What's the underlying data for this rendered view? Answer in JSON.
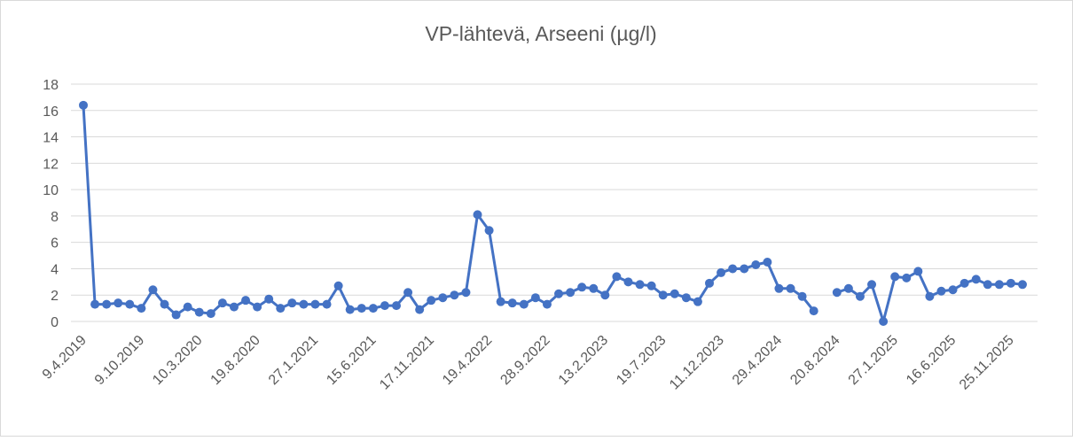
{
  "chart_data": {
    "type": "line",
    "title": "VP-lähtevä, Arseeni (µg/l)",
    "categories": [
      "9.4.2019",
      null,
      null,
      null,
      null,
      "9.10.2019",
      null,
      null,
      null,
      null,
      "10.3.2020",
      null,
      null,
      null,
      null,
      "19.8.2020",
      null,
      null,
      null,
      null,
      "27.1.2021",
      null,
      null,
      null,
      null,
      "15.6.2021",
      null,
      null,
      null,
      null,
      "17.11.2021",
      null,
      null,
      null,
      null,
      "19.4.2022",
      null,
      null,
      null,
      null,
      "28.9.2022",
      null,
      null,
      null,
      null,
      "13.2.2023",
      null,
      null,
      null,
      null,
      "19.7.2023",
      null,
      null,
      null,
      null,
      "11.12.2023",
      null,
      null,
      null,
      null,
      "29.4.2024",
      null,
      null,
      null,
      null,
      "20.8.2024",
      null,
      null,
      null,
      null,
      "27.1.2025",
      null,
      null,
      null,
      null,
      "16.6.2025",
      null,
      null,
      null,
      null,
      "25.11.2025",
      null
    ],
    "series": [
      {
        "name": "Arseeni",
        "color": "#4472c4",
        "values": [
          16.4,
          1.3,
          1.3,
          1.4,
          1.3,
          1.0,
          2.4,
          1.3,
          0.5,
          1.1,
          0.7,
          0.6,
          1.4,
          1.1,
          1.6,
          1.1,
          1.7,
          1.0,
          1.4,
          1.3,
          1.3,
          1.3,
          2.7,
          0.9,
          1.0,
          1.0,
          1.2,
          1.2,
          2.2,
          0.9,
          1.6,
          1.8,
          2.0,
          2.2,
          8.1,
          6.9,
          1.5,
          1.4,
          1.3,
          1.8,
          1.3,
          2.1,
          2.2,
          2.6,
          2.5,
          2.0,
          3.4,
          3.0,
          2.8,
          2.7,
          2.0,
          2.1,
          1.8,
          1.5,
          2.9,
          3.7,
          4.0,
          4.0,
          4.3,
          4.5,
          2.5,
          2.5,
          1.9,
          0.8,
          null,
          2.2,
          2.5,
          1.9,
          2.8,
          0.0,
          3.4,
          3.3,
          3.8,
          1.9,
          2.3,
          2.4,
          2.9,
          3.2,
          2.8,
          2.8,
          2.9,
          2.8
        ]
      }
    ],
    "ylim": [
      0,
      18
    ],
    "yticks": [
      0,
      2,
      4,
      6,
      8,
      10,
      12,
      14,
      16,
      18
    ],
    "grid": true
  }
}
